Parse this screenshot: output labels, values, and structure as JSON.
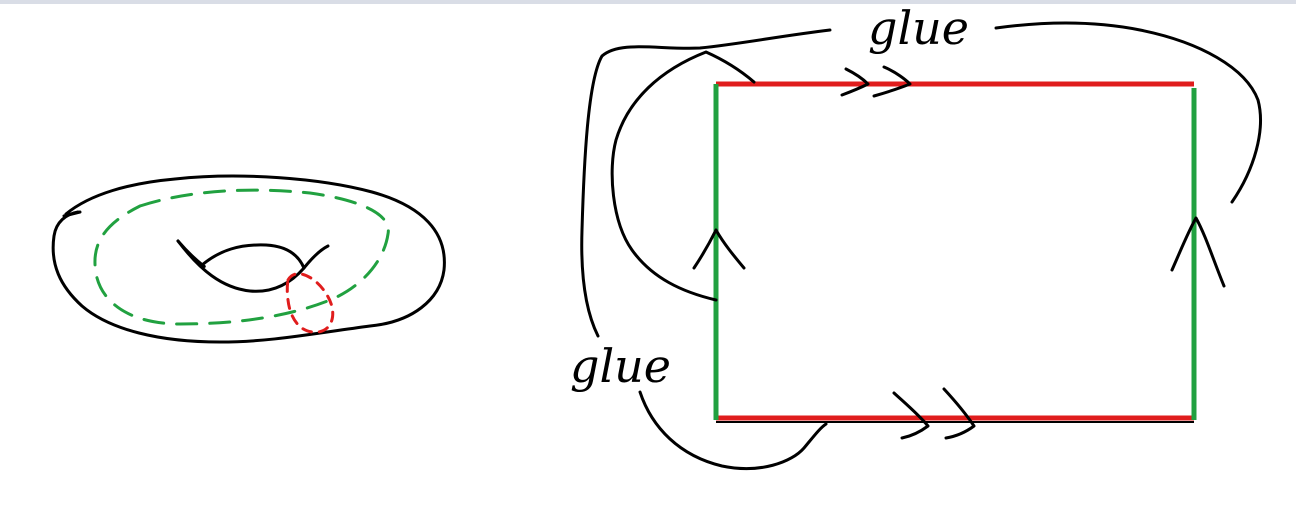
{
  "labels": {
    "glue_top": "glue",
    "glue_left": "glue"
  },
  "colors": {
    "ink": "#000000",
    "edge_horizontal": "#e01d1d",
    "edge_vertical": "#21a140",
    "torus_loop_green": "#21a140",
    "torus_loop_red": "#e01d1d",
    "top_strip": "#d9dde6"
  }
}
